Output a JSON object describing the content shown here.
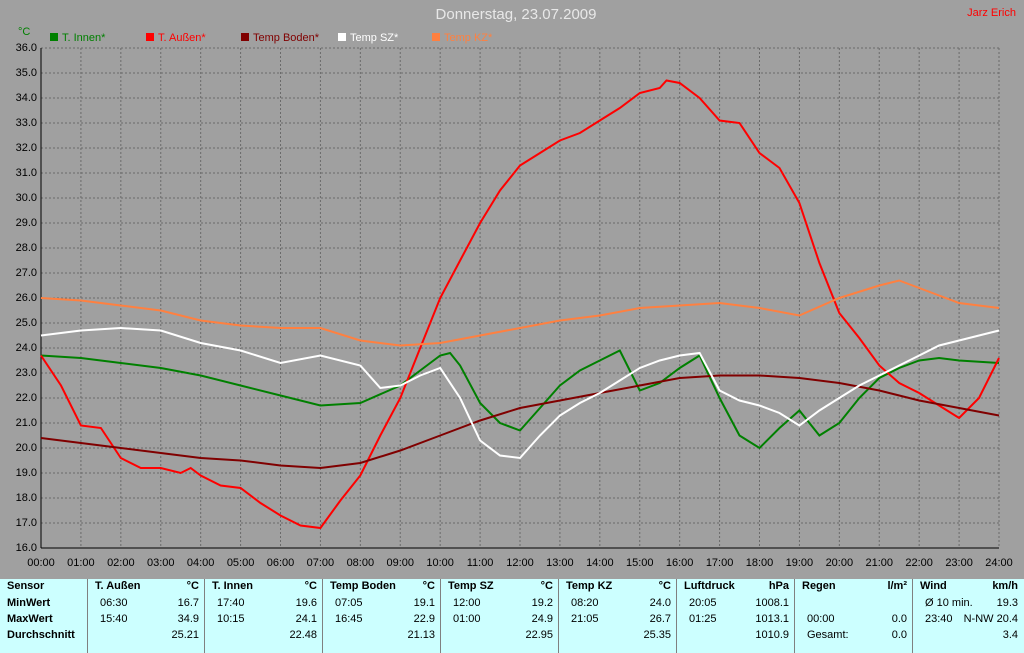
{
  "chart_data": {
    "type": "line",
    "title": "Donnerstag, 23.07.2009",
    "author": "Jarz Erich",
    "y_label": "°C",
    "grid": true,
    "xlim": [
      0,
      24
    ],
    "ylim": [
      16,
      36
    ],
    "xticks": [
      {
        "value": 0,
        "label": "00:00"
      },
      {
        "value": 1,
        "label": "01:00"
      },
      {
        "value": 2,
        "label": "02:00"
      },
      {
        "value": 3,
        "label": "03:00"
      },
      {
        "value": 4,
        "label": "04:00"
      },
      {
        "value": 5,
        "label": "05:00"
      },
      {
        "value": 6,
        "label": "06:00"
      },
      {
        "value": 7,
        "label": "07:00"
      },
      {
        "value": 8,
        "label": "08:00"
      },
      {
        "value": 9,
        "label": "09:00"
      },
      {
        "value": 10,
        "label": "10:00"
      },
      {
        "value": 11,
        "label": "11:00"
      },
      {
        "value": 12,
        "label": "12:00"
      },
      {
        "value": 13,
        "label": "13:00"
      },
      {
        "value": 14,
        "label": "14:00"
      },
      {
        "value": 15,
        "label": "15:00"
      },
      {
        "value": 16,
        "label": "16:00"
      },
      {
        "value": 17,
        "label": "17:00"
      },
      {
        "value": 18,
        "label": "18:00"
      },
      {
        "value": 19,
        "label": "19:00"
      },
      {
        "value": 20,
        "label": "20:00"
      },
      {
        "value": 21,
        "label": "21:00"
      },
      {
        "value": 22,
        "label": "22:00"
      },
      {
        "value": 23,
        "label": "23:00"
      },
      {
        "value": 24,
        "label": "24:00"
      }
    ],
    "yticks": [
      {
        "value": 16,
        "label": "16.0"
      },
      {
        "value": 17,
        "label": "17.0"
      },
      {
        "value": 18,
        "label": "18.0"
      },
      {
        "value": 19,
        "label": "19.0"
      },
      {
        "value": 20,
        "label": "20.0"
      },
      {
        "value": 21,
        "label": "21.0"
      },
      {
        "value": 22,
        "label": "22.0"
      },
      {
        "value": 23,
        "label": "23.0"
      },
      {
        "value": 24,
        "label": "24.0"
      },
      {
        "value": 25,
        "label": "25.0"
      },
      {
        "value": 26,
        "label": "26.0"
      },
      {
        "value": 27,
        "label": "27.0"
      },
      {
        "value": 28,
        "label": "28.0"
      },
      {
        "value": 29,
        "label": "29.0"
      },
      {
        "value": 30,
        "label": "30.0"
      },
      {
        "value": 31,
        "label": "31.0"
      },
      {
        "value": 32,
        "label": "32.0"
      },
      {
        "value": 33,
        "label": "33.0"
      },
      {
        "value": 34,
        "label": "34.0"
      },
      {
        "value": 35,
        "label": "35.0"
      },
      {
        "value": 36,
        "label": "36.0"
      }
    ],
    "series": [
      {
        "name": "T. Innen*",
        "color": "#008000",
        "x": [
          0,
          1,
          2,
          3,
          4,
          5,
          6,
          7,
          8,
          9,
          9.5,
          10,
          10.25,
          10.5,
          11,
          11.5,
          12,
          12.5,
          13,
          13.5,
          14,
          14.5,
          15,
          15.5,
          16,
          16.5,
          17,
          17.5,
          18,
          18.5,
          19,
          19.5,
          20,
          20.5,
          21,
          21.5,
          22,
          22.5,
          23,
          24
        ],
        "values": [
          23.7,
          23.6,
          23.4,
          23.2,
          22.9,
          22.5,
          22.1,
          21.7,
          21.8,
          22.5,
          23.1,
          23.7,
          23.8,
          23.3,
          21.8,
          21.0,
          20.7,
          21.6,
          22.5,
          23.1,
          23.5,
          23.9,
          22.3,
          22.6,
          23.2,
          23.7,
          22.0,
          20.5,
          20.0,
          20.8,
          21.5,
          20.5,
          21.0,
          22.0,
          22.8,
          23.2,
          23.5,
          23.6,
          23.5,
          23.4
        ]
      },
      {
        "name": "T. Außen*",
        "color": "#ff0000",
        "x": [
          0,
          0.5,
          1,
          1.5,
          2,
          2.5,
          3,
          3.5,
          3.75,
          4,
          4.5,
          5,
          5.5,
          6,
          6.5,
          7,
          7.5,
          8,
          8.5,
          9,
          9.5,
          10,
          10.5,
          11,
          11.5,
          12,
          12.5,
          13,
          13.5,
          14,
          14.5,
          15,
          15.5,
          15.67,
          16,
          16.5,
          17,
          17.5,
          18,
          18.5,
          19,
          19.5,
          20,
          20.5,
          21,
          21.5,
          22,
          22.5,
          23,
          23.5,
          24
        ],
        "values": [
          23.7,
          22.5,
          20.9,
          20.8,
          19.6,
          19.2,
          19.2,
          19.0,
          19.2,
          18.9,
          18.5,
          18.4,
          17.8,
          17.3,
          16.9,
          16.8,
          17.9,
          18.9,
          20.5,
          22.0,
          24.0,
          26.0,
          27.5,
          29.0,
          30.3,
          31.3,
          31.8,
          32.3,
          32.6,
          33.1,
          33.6,
          34.2,
          34.4,
          34.7,
          34.6,
          34.0,
          33.1,
          33.0,
          31.8,
          31.2,
          29.8,
          27.4,
          25.4,
          24.4,
          23.3,
          22.6,
          22.2,
          21.7,
          21.2,
          22.0,
          23.6
        ]
      },
      {
        "name": "Temp Boden*",
        "color": "#800000",
        "x": [
          0,
          1,
          2,
          3,
          4,
          5,
          6,
          7,
          8,
          9,
          10,
          11,
          12,
          13,
          14,
          15,
          16,
          17,
          18,
          19,
          20,
          21,
          22,
          23,
          24
        ],
        "values": [
          20.4,
          20.2,
          20.0,
          19.8,
          19.6,
          19.5,
          19.3,
          19.2,
          19.4,
          19.9,
          20.5,
          21.1,
          21.6,
          21.9,
          22.2,
          22.5,
          22.8,
          22.9,
          22.9,
          22.8,
          22.6,
          22.3,
          21.9,
          21.6,
          21.3
        ]
      },
      {
        "name": "Temp SZ*",
        "color": "#ffffff",
        "x": [
          0,
          1,
          2,
          3,
          4,
          5,
          6,
          7,
          8,
          8.5,
          9,
          9.5,
          10,
          10.5,
          11,
          11.5,
          12,
          12.5,
          13,
          13.5,
          14,
          14.5,
          15,
          15.5,
          16,
          16.5,
          17,
          17.5,
          18,
          18.5,
          19,
          19.5,
          20,
          20.5,
          21,
          21.5,
          22,
          22.5,
          23,
          23.5,
          24
        ],
        "values": [
          24.5,
          24.7,
          24.8,
          24.7,
          24.2,
          23.9,
          23.4,
          23.7,
          23.3,
          22.4,
          22.5,
          22.9,
          23.2,
          22.0,
          20.3,
          19.7,
          19.6,
          20.5,
          21.3,
          21.8,
          22.2,
          22.7,
          23.2,
          23.5,
          23.7,
          23.8,
          22.3,
          21.9,
          21.7,
          21.4,
          20.9,
          21.5,
          22.0,
          22.5,
          22.9,
          23.3,
          23.7,
          24.1,
          24.3,
          24.5,
          24.7
        ]
      },
      {
        "name": "Temp KZ*",
        "color": "#ff8040",
        "x": [
          0,
          1,
          2,
          3,
          4,
          5,
          6,
          7,
          8,
          9,
          10,
          11,
          12,
          13,
          14,
          15,
          16,
          17,
          18,
          19,
          20,
          21,
          21.5,
          22,
          23,
          24
        ],
        "values": [
          26.0,
          25.9,
          25.7,
          25.5,
          25.1,
          24.9,
          24.8,
          24.8,
          24.3,
          24.1,
          24.2,
          24.5,
          24.8,
          25.1,
          25.3,
          25.6,
          25.7,
          25.8,
          25.6,
          25.3,
          26.0,
          26.5,
          26.7,
          26.4,
          25.8,
          25.6
        ]
      }
    ]
  },
  "table": {
    "row_labels": [
      "Sensor",
      "MinWert",
      "MaxWert",
      "Durchschnitt"
    ],
    "blocks": [
      {
        "name": "T. Außen",
        "unit": "°C",
        "rows": [
          [
            "06:30",
            "16.7"
          ],
          [
            "15:40",
            "34.9"
          ],
          [
            null,
            "25.21"
          ]
        ]
      },
      {
        "name": "T. Innen",
        "unit": "°C",
        "rows": [
          [
            "17:40",
            "19.6"
          ],
          [
            "10:15",
            "24.1"
          ],
          [
            null,
            "22.48"
          ]
        ]
      },
      {
        "name": "Temp Boden",
        "unit": "°C",
        "rows": [
          [
            "07:05",
            "19.1"
          ],
          [
            "16:45",
            "22.9"
          ],
          [
            null,
            "21.13"
          ]
        ]
      },
      {
        "name": "Temp SZ",
        "unit": "°C",
        "rows": [
          [
            "12:00",
            "19.2"
          ],
          [
            "01:00",
            "24.9"
          ],
          [
            null,
            "22.95"
          ]
        ]
      },
      {
        "name": "Temp KZ",
        "unit": "°C",
        "rows": [
          [
            "08:20",
            "24.0"
          ],
          [
            "21:05",
            "26.7"
          ],
          [
            null,
            "25.35"
          ]
        ]
      },
      {
        "name": "Luftdruck",
        "unit": "hPa",
        "rows": [
          [
            "20:05",
            "1008.1"
          ],
          [
            "01:25",
            "1013.1"
          ],
          [
            null,
            "1010.9"
          ]
        ]
      },
      {
        "name": "Regen",
        "unit": "l/m²",
        "rows": [
          [
            null,
            null
          ],
          [
            "00:00",
            "0.0"
          ],
          [
            "Gesamt:",
            "0.0"
          ]
        ]
      },
      {
        "name": "Wind",
        "unit": "km/h",
        "rows": [
          [
            "Ø 10 min.",
            "19.3"
          ],
          [
            "23:40",
            "N-NW 20.4"
          ],
          [
            null,
            "3.4"
          ]
        ]
      }
    ]
  }
}
